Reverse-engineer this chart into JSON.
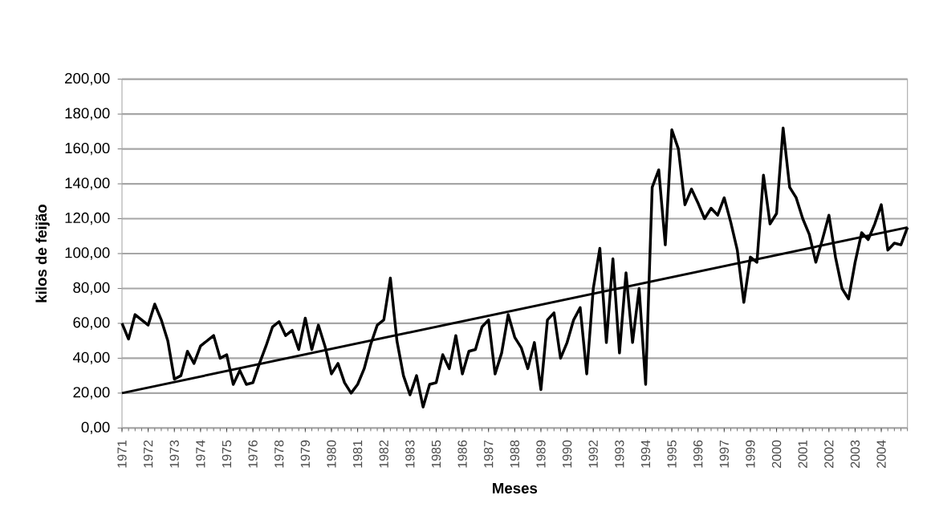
{
  "chart_data": {
    "type": "line",
    "xlabel": "Meses",
    "ylabel": "kilos de feijão",
    "categories": [
      "1971",
      null,
      null,
      null,
      "1972",
      null,
      null,
      null,
      "1973",
      null,
      null,
      null,
      "1974",
      null,
      null,
      null,
      "1975",
      null,
      null,
      null,
      "1976",
      null,
      null,
      null,
      "1978",
      null,
      null,
      null,
      "1979",
      null,
      null,
      null,
      "1980",
      null,
      null,
      null,
      "1981",
      null,
      null,
      null,
      "1982",
      null,
      null,
      null,
      "1983",
      null,
      null,
      null,
      "1985",
      null,
      null,
      null,
      "1986",
      null,
      null,
      null,
      "1987",
      null,
      null,
      null,
      "1988",
      null,
      null,
      null,
      "1989",
      null,
      null,
      null,
      "1990",
      null,
      null,
      null,
      "1992",
      null,
      null,
      null,
      "1993",
      null,
      null,
      null,
      "1994",
      null,
      null,
      null,
      "1995",
      null,
      null,
      null,
      "1996",
      null,
      null,
      null,
      "1997",
      null,
      null,
      null,
      "1999",
      null,
      null,
      null,
      "2000",
      null,
      null,
      null,
      "2001",
      null,
      null,
      null,
      "2002",
      null,
      null,
      null,
      "2003",
      null,
      null,
      null,
      "2004",
      null,
      null,
      null,
      null
    ],
    "series": [
      {
        "color": "#000000",
        "values": [
          60,
          51,
          65,
          62,
          59,
          71,
          62,
          50,
          28,
          30,
          44,
          37,
          47,
          50,
          53,
          40,
          42,
          25,
          33,
          25,
          26,
          37,
          47,
          58,
          61,
          53,
          56,
          45,
          63,
          45,
          59,
          47,
          31,
          37,
          26,
          20,
          25,
          34,
          48,
          59,
          62,
          86,
          50,
          30,
          19,
          30,
          12,
          25,
          26,
          42,
          34,
          53,
          31,
          44,
          45,
          58,
          62,
          31,
          43,
          65,
          52,
          46,
          34,
          49,
          22,
          62,
          66,
          40,
          49,
          62,
          69,
          31,
          80,
          103,
          49,
          97,
          43,
          89,
          49,
          80,
          25,
          138,
          148,
          105,
          171,
          160,
          128,
          137,
          129,
          120,
          126,
          122,
          132,
          118,
          102,
          72,
          98,
          95,
          145,
          117,
          123,
          172,
          138,
          132,
          120,
          111,
          95,
          108,
          122,
          98,
          80,
          74,
          95,
          112,
          108,
          117,
          128,
          102,
          106,
          105,
          115
        ]
      },
      {
        "type": "line",
        "color": "#000000",
        "values": [
          20,
          null,
          null,
          null,
          null,
          null,
          null,
          null,
          null,
          null,
          null,
          null,
          null,
          null,
          null,
          null,
          null,
          null,
          null,
          null,
          null,
          null,
          null,
          null,
          null,
          null,
          null,
          null,
          null,
          null,
          null,
          null,
          null,
          null,
          null,
          null,
          null,
          null,
          null,
          null,
          null,
          null,
          null,
          null,
          null,
          null,
          null,
          null,
          null,
          null,
          null,
          null,
          null,
          null,
          null,
          null,
          null,
          null,
          null,
          null,
          null,
          null,
          null,
          null,
          null,
          null,
          null,
          null,
          null,
          null,
          null,
          null,
          null,
          null,
          null,
          null,
          null,
          null,
          null,
          null,
          null,
          null,
          null,
          null,
          null,
          null,
          null,
          null,
          null,
          null,
          null,
          null,
          null,
          null,
          null,
          null,
          null,
          null,
          null,
          null,
          null,
          null,
          null,
          null,
          null,
          null,
          null,
          null,
          null,
          null,
          null,
          null,
          null,
          null,
          null,
          null,
          null,
          null,
          null,
          null,
          115
        ]
      }
    ],
    "ylim": [
      0,
      200
    ],
    "yticks": [
      {
        "value": 0,
        "label": "0,00"
      },
      {
        "value": 20,
        "label": "20,00"
      },
      {
        "value": 40,
        "label": "40,00"
      },
      {
        "value": 60,
        "label": "60,00"
      },
      {
        "value": 80,
        "label": "80,00"
      },
      {
        "value": 100,
        "label": "100,00"
      },
      {
        "value": 120,
        "label": "120,00"
      },
      {
        "value": 140,
        "label": "140,00"
      },
      {
        "value": 160,
        "label": "160,00"
      },
      {
        "value": 180,
        "label": "180,00"
      },
      {
        "value": 200,
        "label": "200,00"
      }
    ],
    "grid": "y"
  }
}
